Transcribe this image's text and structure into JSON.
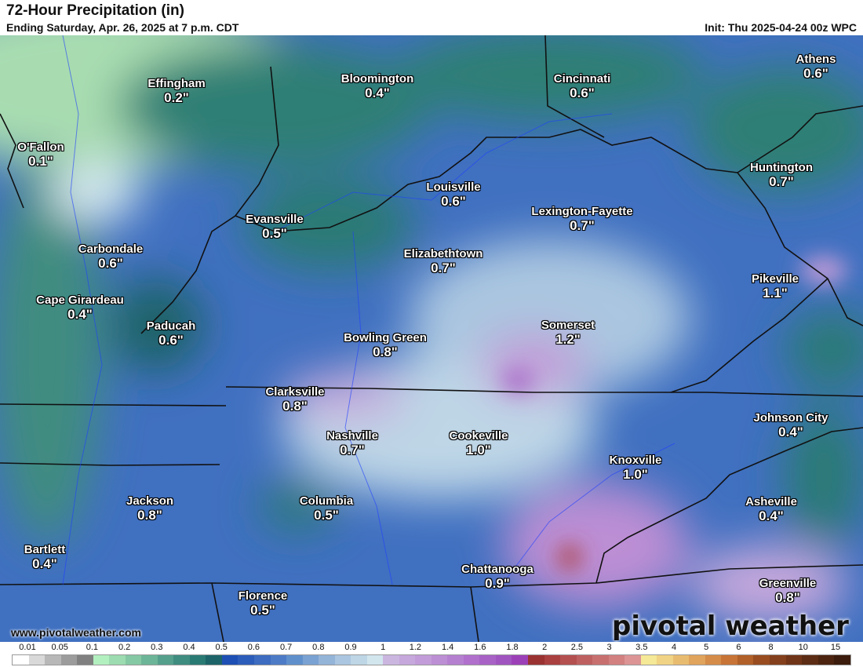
{
  "header": {
    "title": "72-Hour Precipitation (in)",
    "subtitle": "Ending Saturday, Apr. 26, 2025 at 7 p.m. CDT",
    "init": "Init: Thu 2025-04-24 00z WPC"
  },
  "cities": [
    {
      "name": "Effingham",
      "value": "0.2\""
    },
    {
      "name": "Bloomington",
      "value": "0.4\""
    },
    {
      "name": "Cincinnati",
      "value": "0.6\""
    },
    {
      "name": "Athens",
      "value": "0.6\""
    },
    {
      "name": "O'Fallon",
      "value": "0.1\""
    },
    {
      "name": "Huntington",
      "value": "0.7\""
    },
    {
      "name": "Louisville",
      "value": "0.6\""
    },
    {
      "name": "Lexington-Fayette",
      "value": "0.7\""
    },
    {
      "name": "Evansville",
      "value": "0.5\""
    },
    {
      "name": "Carbondale",
      "value": "0.6\""
    },
    {
      "name": "Elizabethtown",
      "value": "0.7\""
    },
    {
      "name": "Pikeville",
      "value": "1.1\""
    },
    {
      "name": "Cape Girardeau",
      "value": "0.4\""
    },
    {
      "name": "Paducah",
      "value": "0.6\""
    },
    {
      "name": "Bowling Green",
      "value": "0.8\""
    },
    {
      "name": "Somerset",
      "value": "1.2\""
    },
    {
      "name": "Clarksville",
      "value": "0.8\""
    },
    {
      "name": "Johnson City",
      "value": "0.4\""
    },
    {
      "name": "Nashville",
      "value": "0.7\""
    },
    {
      "name": "Cookeville",
      "value": "1.0\""
    },
    {
      "name": "Knoxville",
      "value": "1.0\""
    },
    {
      "name": "Jackson",
      "value": "0.8\""
    },
    {
      "name": "Columbia",
      "value": "0.5\""
    },
    {
      "name": "Asheville",
      "value": "0.4\""
    },
    {
      "name": "Bartlett",
      "value": "0.4\""
    },
    {
      "name": "Chattanooga",
      "value": "0.9\""
    },
    {
      "name": "Florence",
      "value": "0.5\""
    },
    {
      "name": "Greenville",
      "value": "0.8\""
    }
  ],
  "footer": {
    "website": "www.pivotalweather.com",
    "logo_text": "pivotal weather"
  },
  "legend": {
    "labels": [
      "0.01",
      "0.05",
      "0.1",
      "0.2",
      "0.3",
      "0.4",
      "0.5",
      "0.6",
      "0.7",
      "0.8",
      "0.9",
      "1",
      "1.2",
      "1.4",
      "1.6",
      "1.8",
      "2",
      "2.5",
      "3",
      "3.5",
      "4",
      "5",
      "6",
      "8",
      "10",
      "15"
    ],
    "colors": [
      "#ffffff",
      "#d9d9d9",
      "#b8b8b8",
      "#9c9c9c",
      "#808080",
      "#b3f0c0",
      "#9ddcb0",
      "#85c8a4",
      "#6db598",
      "#55a08c",
      "#3f8c80",
      "#2a7a74",
      "#1d6468",
      "#1e4fb4",
      "#2d5dba",
      "#3d6cc0",
      "#4d7bc6",
      "#6090cc",
      "#7aa2d2",
      "#94b4d8",
      "#aac6e0",
      "#bed6e6",
      "#d2e6ee",
      "#cbb6e0",
      "#c6a8dc",
      "#c29cd8",
      "#bc8ed4",
      "#b680d0",
      "#b070cc",
      "#a862c6",
      "#a054c0",
      "#9c40b8",
      "#9a3232",
      "#aa4040",
      "#b45050",
      "#be6060",
      "#c87070",
      "#d28080",
      "#dc9494",
      "#f5e896",
      "#f0d384",
      "#e8bc70",
      "#e0a45c",
      "#d48c48",
      "#c87436",
      "#b06028",
      "#984c20",
      "#84401c",
      "#703418",
      "#5c2c14",
      "#4c2410",
      "#3c1c0c"
    ]
  }
}
